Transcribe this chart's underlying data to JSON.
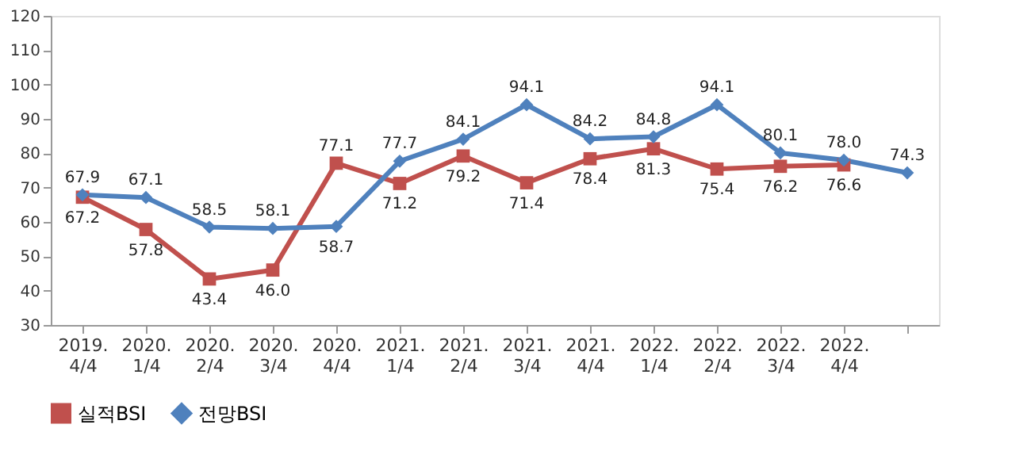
{
  "chart_data": {
    "type": "line",
    "categories": [
      "2019. 4/4",
      "2020. 1/4",
      "2020. 2/4",
      "2020. 3/4",
      "2020. 4/4",
      "2021. 1/4",
      "2021. 2/4",
      "2021. 3/4",
      "2021. 4/4",
      "2022. 1/4",
      "2022. 2/4",
      "2022. 3/4",
      "2022. 4/4",
      null
    ],
    "series": [
      {
        "name": "실적BSI",
        "color": "#c0504d",
        "marker": "square",
        "value_labels": [
          "67.2",
          "57.8",
          "43.4",
          "46.0",
          "77.1",
          "71.2",
          "79.2",
          "71.4",
          "78.4",
          "81.3",
          "75.4",
          "76.2",
          "76.6",
          null
        ],
        "values": [
          67.2,
          57.8,
          43.4,
          46.0,
          77.1,
          71.2,
          79.2,
          71.4,
          78.4,
          81.3,
          75.4,
          76.2,
          76.6,
          null
        ]
      },
      {
        "name": "전망BSI",
        "color": "#4f81bd",
        "marker": "diamond",
        "value_labels": [
          "67.9",
          "67.1",
          "58.5",
          "58.1",
          "58.7",
          "77.7",
          "84.1",
          "94.1",
          "84.2",
          "84.8",
          "94.1",
          "80.1",
          "78.0",
          "74.3"
        ],
        "values": [
          67.9,
          67.1,
          58.5,
          58.1,
          58.7,
          77.7,
          84.1,
          94.1,
          84.2,
          84.8,
          94.1,
          80.1,
          78.0,
          74.3
        ]
      }
    ],
    "ylim": [
      30,
      120
    ],
    "yticks": [
      30,
      40,
      50,
      60,
      70,
      80,
      90,
      100,
      110,
      120
    ],
    "data_labels": true,
    "grid": false,
    "legend": "bottom",
    "line_style": "solid"
  }
}
